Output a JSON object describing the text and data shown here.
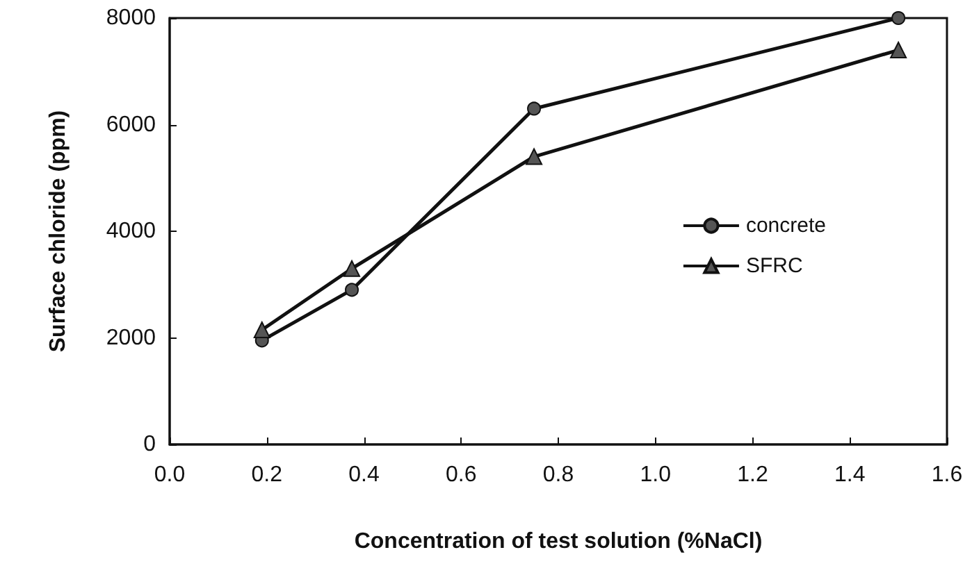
{
  "chart_data": {
    "type": "line",
    "xlabel": "Concentration of test solution (%NaCl)",
    "ylabel": "Surface chloride (ppm)",
    "series": [
      {
        "name": "concrete",
        "color": "#555555",
        "marker": "circle",
        "x": [
          0.19,
          0.375,
          0.75,
          1.5
        ],
        "values": [
          1950,
          2900,
          6300,
          8000
        ]
      },
      {
        "name": "SFRC",
        "color": "#555555",
        "marker": "triangle",
        "x": [
          0.19,
          0.375,
          0.75,
          1.5
        ],
        "values": [
          2150,
          3300,
          5400,
          7400
        ]
      }
    ],
    "xlim": [
      0,
      1.6
    ],
    "xticks": [
      {
        "value": 0,
        "label": "0.0"
      },
      0.2,
      0.4,
      0.6,
      0.8,
      {
        "value": 1,
        "label": "1.0"
      },
      1.2,
      1.4,
      1.6
    ],
    "ylim": [
      0,
      8000
    ],
    "yticks": [
      0,
      2000,
      4000,
      6000,
      8000
    ],
    "grid": false,
    "legend": "right",
    "line_style": "solid"
  }
}
